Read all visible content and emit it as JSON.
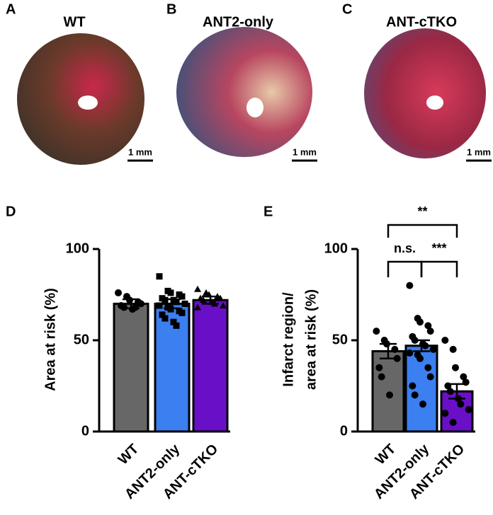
{
  "image_panels": [
    {
      "label": "A",
      "title": "WT",
      "scale": "1 mm"
    },
    {
      "label": "B",
      "title": "ANT2-only",
      "scale": "1 mm"
    },
    {
      "label": "C",
      "title": "ANT-cTKO",
      "scale": "1 mm"
    }
  ],
  "chart_data": [
    {
      "type": "bar",
      "label": "D",
      "ylabel": [
        "Area at risk (%)"
      ],
      "categories": [
        "WT",
        "ANT2-only",
        "ANT-cTKO"
      ],
      "colors": [
        "#676767",
        "#3b7ff0",
        "#6a0fc8"
      ],
      "values": [
        70,
        70,
        72
      ],
      "errors": [
        2.5,
        2.5,
        2
      ],
      "markers": [
        "circle",
        "square",
        "triangle"
      ],
      "points": [
        [
          76,
          74,
          72,
          71,
          70,
          69,
          68,
          67,
          68
        ],
        [
          85,
          77,
          76,
          75,
          74,
          73,
          72,
          72,
          71,
          70,
          69,
          68,
          67,
          66,
          65,
          64,
          62,
          60,
          58
        ],
        [
          78,
          76,
          75,
          74,
          73,
          73,
          72,
          71,
          70,
          69,
          68
        ]
      ],
      "ylim": [
        0,
        100
      ],
      "yticks": [
        0,
        50,
        100
      ]
    },
    {
      "type": "bar",
      "label": "E",
      "ylabel": [
        "Infarct region/",
        "area at risk (%)"
      ],
      "categories": [
        "WT",
        "ANT2-only",
        "ANT-cTKO"
      ],
      "colors": [
        "#676767",
        "#3b7ff0",
        "#6a0fc8"
      ],
      "values": [
        44,
        47,
        22
      ],
      "errors": [
        4,
        3,
        4
      ],
      "markers": [
        "circle",
        "circle",
        "circle"
      ],
      "points": [
        [
          55,
          50,
          48,
          45,
          40,
          35,
          30,
          20
        ],
        [
          80,
          62,
          60,
          58,
          55,
          52,
          50,
          48,
          47,
          45,
          43,
          42,
          40,
          35,
          30,
          25,
          20,
          15
        ],
        [
          50,
          45,
          35,
          30,
          27,
          25,
          22,
          18,
          15,
          12,
          10,
          5
        ]
      ],
      "ylim": [
        0,
        100
      ],
      "yticks": [
        0,
        50,
        100
      ],
      "annotations": [
        {
          "text": "**",
          "between": [
            "WT",
            "ANT-cTKO"
          ]
        },
        {
          "text": "n.s.",
          "between": [
            "WT",
            "ANT2-only"
          ]
        },
        {
          "text": "***",
          "between": [
            "ANT2-only",
            "ANT-cTKO"
          ]
        }
      ]
    }
  ]
}
